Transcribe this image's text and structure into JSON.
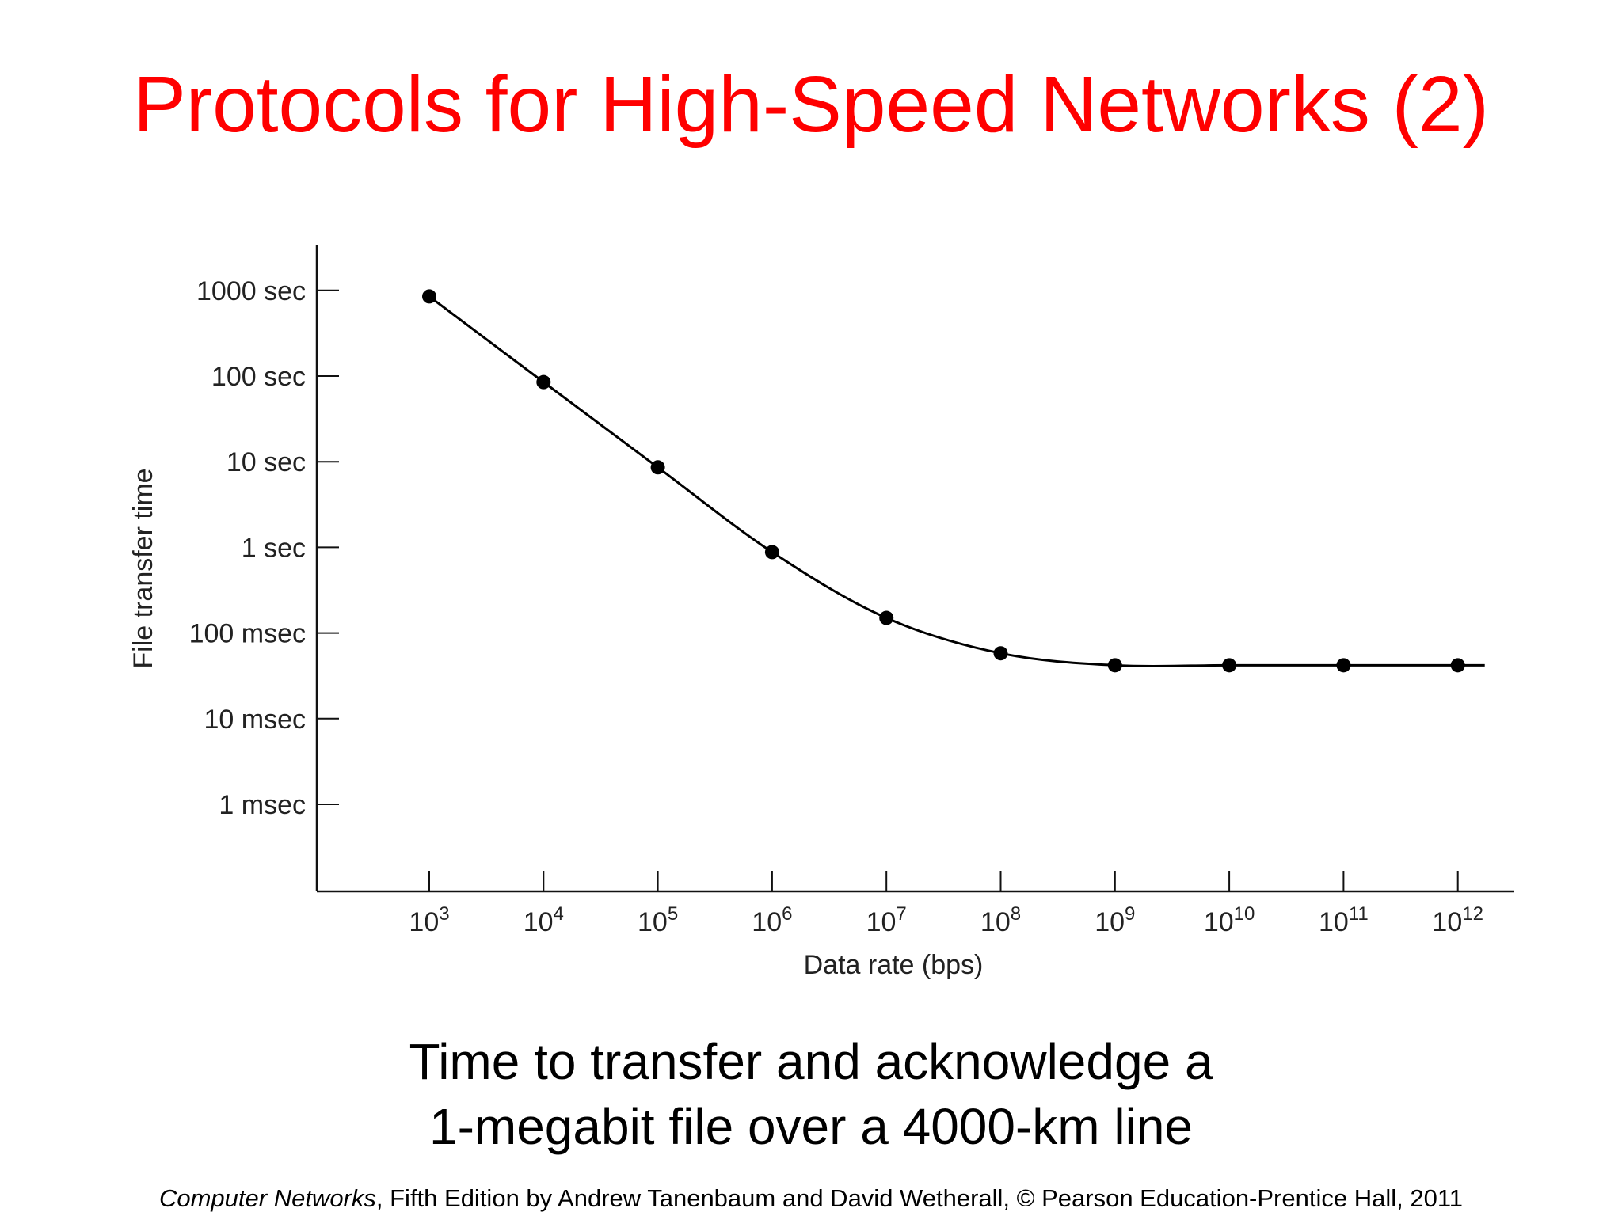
{
  "slide": {
    "title": "Protocols for High-Speed Networks (2)",
    "caption_line1": "Time to transfer and acknowledge a",
    "caption_line2": "1-megabit file over a 4000-km line",
    "footer_book": "Computer Networks",
    "footer_rest": ", Fifth Edition by Andrew Tanenbaum and David Wetherall, © Pearson Education-Prentice Hall, 2011",
    "title_color": "#ff0000"
  },
  "chart_data": {
    "type": "line",
    "xlabel": "Data rate (bps)",
    "ylabel": "File transfer time",
    "x_scale": "log",
    "y_scale": "log",
    "xlim": [
      1000,
      1000000000000
    ],
    "ylim_seconds": [
      0.001,
      1000
    ],
    "grid": false,
    "x_ticks": [
      {
        "base": "10",
        "exp": "3"
      },
      {
        "base": "10",
        "exp": "4"
      },
      {
        "base": "10",
        "exp": "5"
      },
      {
        "base": "10",
        "exp": "6"
      },
      {
        "base": "10",
        "exp": "7"
      },
      {
        "base": "10",
        "exp": "8"
      },
      {
        "base": "10",
        "exp": "9"
      },
      {
        "base": "10",
        "exp": "10"
      },
      {
        "base": "10",
        "exp": "11"
      },
      {
        "base": "10",
        "exp": "12"
      }
    ],
    "y_ticks": [
      {
        "label": "1000 sec",
        "seconds": 1000
      },
      {
        "label": "100 sec",
        "seconds": 100
      },
      {
        "label": "10 sec",
        "seconds": 10
      },
      {
        "label": "1 sec",
        "seconds": 1
      },
      {
        "label": "100 msec",
        "seconds": 0.1
      },
      {
        "label": "10 msec",
        "seconds": 0.01
      },
      {
        "label": "1 msec",
        "seconds": 0.001
      }
    ],
    "series": [
      {
        "x": [
          1000,
          10000,
          100000,
          1000000,
          10000000,
          100000000,
          1000000000,
          10000000000,
          100000000000,
          1000000000000
        ],
        "y_seconds": [
          850,
          85,
          8.6,
          0.88,
          0.15,
          0.058,
          0.042,
          0.042,
          0.042,
          0.042
        ],
        "color": "#000000"
      }
    ]
  }
}
